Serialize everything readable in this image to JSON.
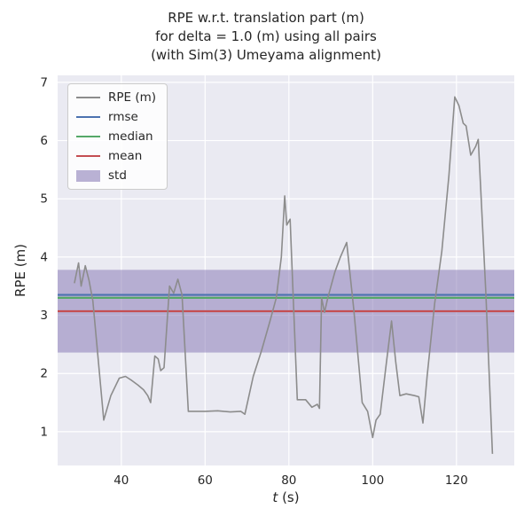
{
  "chart_data": {
    "type": "line",
    "title_lines": [
      "RPE w.r.t. translation part (m)",
      "for delta = 1.0 (m) using all pairs",
      "(with Sim(3) Umeyama alignment)"
    ],
    "xlabel_italic": "t",
    "xlabel_rest": " (s)",
    "ylabel": "RPE (m)",
    "xlim": [
      24.8,
      133.8
    ],
    "ylim": [
      0.42,
      7.12
    ],
    "xticks": [
      40,
      60,
      80,
      100,
      120
    ],
    "yticks": [
      1,
      2,
      3,
      4,
      5,
      6,
      7
    ],
    "grid": true,
    "legend_position": "upper left",
    "legend": [
      {
        "label": "RPE (m)",
        "type": "line",
        "color": "#8c8c8c"
      },
      {
        "label": "rmse",
        "type": "line",
        "color": "#4c72b0"
      },
      {
        "label": "median",
        "type": "line",
        "color": "#55a868"
      },
      {
        "label": "mean",
        "type": "line",
        "color": "#c44e52"
      },
      {
        "label": "std",
        "type": "band",
        "color": "#8172b2"
      }
    ],
    "stats": {
      "rmse": 3.35,
      "median": 3.3,
      "mean": 3.07,
      "std_band": [
        2.36,
        3.78
      ]
    },
    "series": [
      {
        "name": "RPE (m)",
        "x": [
          28.8,
          29.8,
          30.4,
          31.4,
          32.3,
          33.2,
          35.8,
          37.5,
          39.5,
          41,
          42.5,
          44,
          45.3,
          46.3,
          47.0,
          48.0,
          48.8,
          49.4,
          50.2,
          51.5,
          52.5,
          53.5,
          54.5,
          56.0,
          57,
          60,
          63,
          66,
          68.5,
          69.5,
          71.5,
          73.5,
          75.5,
          77,
          78.2,
          79,
          79.5,
          80.3,
          82,
          84,
          85.5,
          86.8,
          87.3,
          87.8,
          88.5,
          89.3,
          91,
          92.3,
          93.8,
          95.5,
          97.5,
          98.8,
          100,
          100.8,
          101.8,
          103.3,
          104.5,
          105.5,
          106.5,
          108,
          110,
          111,
          112,
          113,
          114.8,
          116.5,
          118.2,
          119.6,
          120.6,
          121.6,
          122.3,
          123.4,
          124.6,
          125.2,
          127,
          128.6
        ],
        "y": [
          3.55,
          3.9,
          3.5,
          3.85,
          3.6,
          3.25,
          1.2,
          1.62,
          1.92,
          1.95,
          1.88,
          1.8,
          1.72,
          1.62,
          1.5,
          2.3,
          2.25,
          2.05,
          2.1,
          3.5,
          3.38,
          3.62,
          3.35,
          1.35,
          1.35,
          1.35,
          1.36,
          1.34,
          1.35,
          1.3,
          1.95,
          2.4,
          2.9,
          3.3,
          4.0,
          5.05,
          4.55,
          4.65,
          1.55,
          1.55,
          1.42,
          1.47,
          1.4,
          3.3,
          3.05,
          3.3,
          3.75,
          4.0,
          4.25,
          3.1,
          1.5,
          1.35,
          0.9,
          1.2,
          1.3,
          2.2,
          2.9,
          2.2,
          1.62,
          1.65,
          1.62,
          1.6,
          1.15,
          1.95,
          3.2,
          4.1,
          5.4,
          6.75,
          6.6,
          6.3,
          6.25,
          5.75,
          5.9,
          6.02,
          3.4,
          0.62
        ]
      }
    ],
    "colors": {
      "axes_bg": "#eaeaf2",
      "grid": "#ffffff",
      "rpe_line": "#8c8c8c",
      "rmse": "#4c72b0",
      "median": "#55a868",
      "mean": "#c44e52",
      "std_fill": "#8172b2",
      "text": "#262626"
    }
  }
}
